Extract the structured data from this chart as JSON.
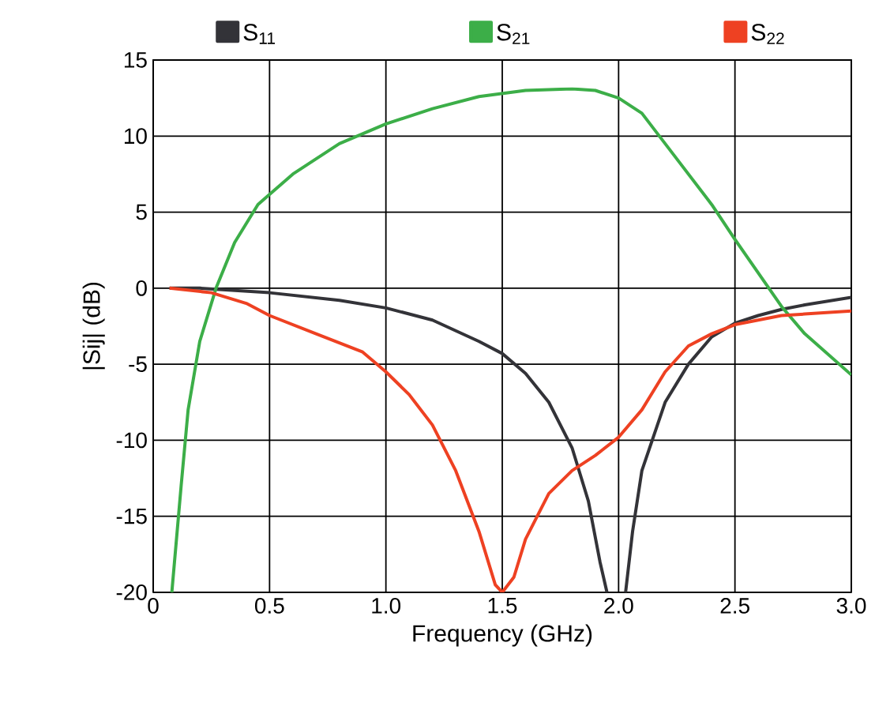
{
  "chart_data": {
    "type": "line",
    "xlabel": "Frequency (GHz)",
    "ylabel": "|Sij| (dB)",
    "xlim": [
      0,
      3.0
    ],
    "ylim": [
      -20,
      15
    ],
    "xticks": [
      {
        "value": 0,
        "label": "0"
      },
      {
        "value": 0.5,
        "label": "0.5"
      },
      {
        "value": 1,
        "label": "1.0"
      },
      {
        "value": 1.5,
        "label": "1.5"
      },
      {
        "value": 2,
        "label": "2.0"
      },
      {
        "value": 2.5,
        "label": "2.5"
      },
      {
        "value": 3,
        "label": "3.0"
      }
    ],
    "yticks": [
      -20,
      -15,
      -10,
      -5,
      0,
      5,
      10,
      15
    ],
    "grid": true,
    "legend": "top",
    "series": [
      {
        "name": "S$_{11}$",
        "color": "#333338",
        "x": [
          0.07,
          0.2,
          0.5,
          0.8,
          1.0,
          1.2,
          1.4,
          1.5,
          1.6,
          1.7,
          1.8,
          1.87,
          1.92,
          1.95,
          1.99,
          2.03,
          2.06,
          2.1,
          2.2,
          2.3,
          2.4,
          2.5,
          2.6,
          2.7,
          2.8,
          3.0
        ],
        "values": [
          0,
          0,
          -0.3,
          -0.8,
          -1.3,
          -2.1,
          -3.5,
          -4.3,
          -5.6,
          -7.5,
          -10.5,
          -14,
          -18,
          -20,
          null,
          -20,
          -16,
          -12,
          -7.5,
          -5.0,
          -3.2,
          -2.3,
          -1.8,
          -1.4,
          -1.1,
          -0.6
        ]
      },
      {
        "name": "S$_{21}$",
        "color": "#3cae48",
        "x": [
          0.08,
          0.12,
          0.15,
          0.2,
          0.27,
          0.35,
          0.45,
          0.6,
          0.8,
          1.0,
          1.2,
          1.4,
          1.6,
          1.8,
          1.9,
          2.0,
          2.1,
          2.2,
          2.3,
          2.4,
          2.5,
          2.6,
          2.7,
          2.8,
          3.0
        ],
        "values": [
          -20,
          -13,
          -8,
          -3.5,
          0,
          3,
          5.5,
          7.5,
          9.5,
          10.8,
          11.8,
          12.6,
          13,
          13.1,
          13,
          12.5,
          11.5,
          9.5,
          7.5,
          5.5,
          3.2,
          1,
          -1.2,
          -3,
          -5.7
        ]
      },
      {
        "name": "S$_{22}$",
        "color": "#ee4122",
        "x": [
          0.07,
          0.25,
          0.4,
          0.5,
          0.7,
          0.9,
          1.0,
          1.1,
          1.2,
          1.3,
          1.4,
          1.47,
          1.5,
          1.55,
          1.6,
          1.7,
          1.8,
          1.9,
          2.0,
          2.1,
          2.2,
          2.3,
          2.4,
          2.5,
          2.7,
          2.8,
          3.0
        ],
        "values": [
          0,
          -0.3,
          -1.0,
          -1.8,
          -3,
          -4.2,
          -5.5,
          -7.0,
          -9.0,
          -12,
          -16,
          -19.5,
          -20,
          -19,
          -16.5,
          -13.5,
          -12,
          -11,
          -9.8,
          -8,
          -5.5,
          -3.8,
          -3.0,
          -2.4,
          -1.8,
          -1.7,
          -1.5
        ]
      }
    ]
  }
}
